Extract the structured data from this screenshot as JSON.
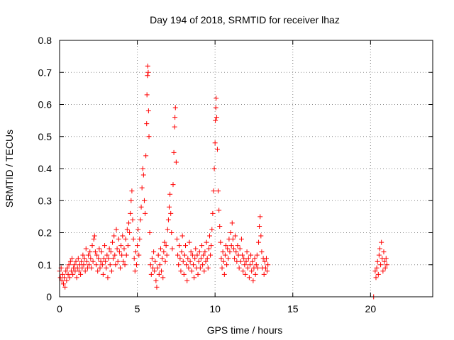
{
  "chart_data": {
    "type": "scatter",
    "title": "Day 194 of 2018, SRMTID for receiver lhaz",
    "xlabel": "GPS time / hours",
    "ylabel": "SRMTID / TECUs",
    "xlim": [
      0,
      24
    ],
    "ylim": [
      0,
      0.8
    ],
    "x_ticks": [
      0,
      5,
      10,
      15,
      20
    ],
    "y_ticks": [
      0,
      0.1,
      0.2,
      0.3,
      0.4,
      0.5,
      0.6,
      0.7,
      0.8
    ],
    "x_tick_labels": [
      "0",
      "5",
      "10",
      "15",
      "20"
    ],
    "y_tick_labels": [
      "0",
      "0.1",
      "0.2",
      "0.3",
      "0.4",
      "0.5",
      "0.6",
      "0.7",
      "0.8"
    ],
    "grid": true,
    "marker": "+",
    "colors": {
      "series": "#ff0000",
      "grid": "#888888",
      "axis": "#000000"
    },
    "series": [
      {
        "name": "SRMTID",
        "points": [
          [
            0.0,
            0.08
          ],
          [
            0.05,
            0.06
          ],
          [
            0.1,
            0.09
          ],
          [
            0.15,
            0.05
          ],
          [
            0.2,
            0.07
          ],
          [
            0.25,
            0.04
          ],
          [
            0.3,
            0.06
          ],
          [
            0.35,
            0.03
          ],
          [
            0.4,
            0.08
          ],
          [
            0.45,
            0.05
          ],
          [
            0.5,
            0.09
          ],
          [
            0.55,
            0.07
          ],
          [
            0.6,
            0.1
          ],
          [
            0.65,
            0.06
          ],
          [
            0.7,
            0.11
          ],
          [
            0.75,
            0.08
          ],
          [
            0.8,
            0.12
          ],
          [
            0.85,
            0.07
          ],
          [
            0.9,
            0.09
          ],
          [
            0.95,
            0.1
          ],
          [
            1.0,
            0.08
          ],
          [
            1.05,
            0.11
          ],
          [
            1.1,
            0.06
          ],
          [
            1.15,
            0.09
          ],
          [
            1.2,
            0.12
          ],
          [
            1.25,
            0.08
          ],
          [
            1.3,
            0.1
          ],
          [
            1.35,
            0.07
          ],
          [
            1.4,
            0.11
          ],
          [
            1.45,
            0.09
          ],
          [
            1.5,
            0.13
          ],
          [
            1.55,
            0.1
          ],
          [
            1.6,
            0.12
          ],
          [
            1.65,
            0.08
          ],
          [
            1.7,
            0.15
          ],
          [
            1.75,
            0.11
          ],
          [
            1.8,
            0.09
          ],
          [
            1.85,
            0.13
          ],
          [
            1.9,
            0.1
          ],
          [
            1.95,
            0.14
          ],
          [
            2.0,
            0.12
          ],
          [
            2.05,
            0.09
          ],
          [
            2.1,
            0.16
          ],
          [
            2.15,
            0.11
          ],
          [
            2.2,
            0.18
          ],
          [
            2.25,
            0.19
          ],
          [
            2.3,
            0.14
          ],
          [
            2.35,
            0.1
          ],
          [
            2.4,
            0.13
          ],
          [
            2.45,
            0.08
          ],
          [
            2.5,
            0.12
          ],
          [
            2.55,
            0.15
          ],
          [
            2.6,
            0.09
          ],
          [
            2.65,
            0.11
          ],
          [
            2.7,
            0.14
          ],
          [
            2.75,
            0.1
          ],
          [
            2.8,
            0.07
          ],
          [
            2.85,
            0.12
          ],
          [
            2.9,
            0.16
          ],
          [
            2.95,
            0.11
          ],
          [
            3.0,
            0.09
          ],
          [
            3.05,
            0.13
          ],
          [
            3.1,
            0.06
          ],
          [
            3.15,
            0.12
          ],
          [
            3.2,
            0.15
          ],
          [
            3.25,
            0.1
          ],
          [
            3.3,
            0.14
          ],
          [
            3.35,
            0.08
          ],
          [
            3.4,
            0.17
          ],
          [
            3.45,
            0.12
          ],
          [
            3.5,
            0.19
          ],
          [
            3.55,
            0.13
          ],
          [
            3.6,
            0.1
          ],
          [
            3.65,
            0.21
          ],
          [
            3.7,
            0.15
          ],
          [
            3.75,
            0.11
          ],
          [
            3.8,
            0.18
          ],
          [
            3.85,
            0.14
          ],
          [
            3.9,
            0.09
          ],
          [
            3.95,
            0.16
          ],
          [
            4.0,
            0.13
          ],
          [
            4.05,
            0.19
          ],
          [
            4.1,
            0.11
          ],
          [
            4.15,
            0.15
          ],
          [
            4.2,
            0.1
          ],
          [
            4.25,
            0.18
          ],
          [
            4.3,
            0.13
          ],
          [
            4.35,
            0.21
          ],
          [
            4.4,
            0.16
          ],
          [
            4.45,
            0.23
          ],
          [
            4.5,
            0.2
          ],
          [
            4.55,
            0.26
          ],
          [
            4.6,
            0.3
          ],
          [
            4.65,
            0.33
          ],
          [
            4.7,
            0.24
          ],
          [
            4.75,
            0.18
          ],
          [
            4.8,
            0.12
          ],
          [
            4.85,
            0.08
          ],
          [
            4.9,
            0.14
          ],
          [
            4.95,
            0.1
          ],
          [
            5.0,
            0.16
          ],
          [
            5.05,
            0.21
          ],
          [
            5.1,
            0.13
          ],
          [
            5.15,
            0.18
          ],
          [
            5.2,
            0.24
          ],
          [
            5.25,
            0.28
          ],
          [
            5.3,
            0.34
          ],
          [
            5.35,
            0.4
          ],
          [
            5.4,
            0.38
          ],
          [
            5.45,
            0.3
          ],
          [
            5.5,
            0.26
          ],
          [
            5.55,
            0.44
          ],
          [
            5.6,
            0.54
          ],
          [
            5.62,
            0.63
          ],
          [
            5.65,
            0.69
          ],
          [
            5.67,
            0.72
          ],
          [
            5.7,
            0.7
          ],
          [
            5.72,
            0.58
          ],
          [
            5.75,
            0.5
          ],
          [
            5.8,
            0.2
          ],
          [
            5.85,
            0.1
          ],
          [
            5.9,
            0.07
          ],
          [
            5.95,
            0.12
          ],
          [
            6.0,
            0.09
          ],
          [
            6.05,
            0.14
          ],
          [
            6.1,
            0.08
          ],
          [
            6.15,
            0.11
          ],
          [
            6.2,
            0.05
          ],
          [
            6.25,
            0.03
          ],
          [
            6.3,
            0.09
          ],
          [
            6.35,
            0.13
          ],
          [
            6.4,
            0.07
          ],
          [
            6.45,
            0.1
          ],
          [
            6.5,
            0.15
          ],
          [
            6.55,
            0.08
          ],
          [
            6.6,
            0.12
          ],
          [
            6.65,
            0.06
          ],
          [
            6.7,
            0.14
          ],
          [
            6.75,
            0.17
          ],
          [
            6.8,
            0.11
          ],
          [
            6.85,
            0.16
          ],
          [
            6.9,
            0.13
          ],
          [
            6.95,
            0.21
          ],
          [
            7.0,
            0.24
          ],
          [
            7.05,
            0.28
          ],
          [
            7.1,
            0.32
          ],
          [
            7.15,
            0.26
          ],
          [
            7.2,
            0.2
          ],
          [
            7.25,
            0.15
          ],
          [
            7.3,
            0.35
          ],
          [
            7.35,
            0.45
          ],
          [
            7.4,
            0.53
          ],
          [
            7.42,
            0.56
          ],
          [
            7.45,
            0.59
          ],
          [
            7.5,
            0.42
          ],
          [
            7.55,
            0.18
          ],
          [
            7.6,
            0.13
          ],
          [
            7.65,
            0.1
          ],
          [
            7.7,
            0.16
          ],
          [
            7.75,
            0.12
          ],
          [
            7.8,
            0.08
          ],
          [
            7.85,
            0.14
          ],
          [
            7.9,
            0.19
          ],
          [
            7.95,
            0.11
          ],
          [
            8.0,
            0.07
          ],
          [
            8.05,
            0.13
          ],
          [
            8.1,
            0.16
          ],
          [
            8.15,
            0.1
          ],
          [
            8.2,
            0.05
          ],
          [
            8.25,
            0.12
          ],
          [
            8.3,
            0.09
          ],
          [
            8.35,
            0.17
          ],
          [
            8.4,
            0.11
          ],
          [
            8.45,
            0.14
          ],
          [
            8.5,
            0.08
          ],
          [
            8.55,
            0.13
          ],
          [
            8.6,
            0.1
          ],
          [
            8.65,
            0.06
          ],
          [
            8.7,
            0.12
          ],
          [
            8.75,
            0.15
          ],
          [
            8.8,
            0.09
          ],
          [
            8.85,
            0.13
          ],
          [
            8.9,
            0.07
          ],
          [
            8.95,
            0.11
          ],
          [
            9.0,
            0.14
          ],
          [
            9.05,
            0.09
          ],
          [
            9.1,
            0.12
          ],
          [
            9.15,
            0.16
          ],
          [
            9.2,
            0.1
          ],
          [
            9.25,
            0.13
          ],
          [
            9.3,
            0.08
          ],
          [
            9.35,
            0.14
          ],
          [
            9.4,
            0.11
          ],
          [
            9.45,
            0.17
          ],
          [
            9.5,
            0.12
          ],
          [
            9.55,
            0.09
          ],
          [
            9.6,
            0.15
          ],
          [
            9.65,
            0.19
          ],
          [
            9.7,
            0.13
          ],
          [
            9.75,
            0.16
          ],
          [
            9.8,
            0.21
          ],
          [
            9.85,
            0.26
          ],
          [
            9.9,
            0.33
          ],
          [
            9.95,
            0.4
          ],
          [
            10.0,
            0.48
          ],
          [
            10.02,
            0.55
          ],
          [
            10.05,
            0.59
          ],
          [
            10.07,
            0.62
          ],
          [
            10.1,
            0.56
          ],
          [
            10.15,
            0.46
          ],
          [
            10.2,
            0.33
          ],
          [
            10.25,
            0.27
          ],
          [
            10.3,
            0.22
          ],
          [
            10.35,
            0.17
          ],
          [
            10.4,
            0.12
          ],
          [
            10.45,
            0.09
          ],
          [
            10.5,
            0.14
          ],
          [
            10.55,
            0.11
          ],
          [
            10.6,
            0.07
          ],
          [
            10.65,
            0.13
          ],
          [
            10.7,
            0.16
          ],
          [
            10.75,
            0.1
          ],
          [
            10.8,
            0.15
          ],
          [
            10.85,
            0.12
          ],
          [
            10.9,
            0.18
          ],
          [
            10.95,
            0.14
          ],
          [
            11.0,
            0.2
          ],
          [
            11.05,
            0.16
          ],
          [
            11.1,
            0.23
          ],
          [
            11.15,
            0.18
          ],
          [
            11.2,
            0.15
          ],
          [
            11.25,
            0.12
          ],
          [
            11.3,
            0.19
          ],
          [
            11.35,
            0.14
          ],
          [
            11.4,
            0.11
          ],
          [
            11.45,
            0.16
          ],
          [
            11.5,
            0.13
          ],
          [
            11.55,
            0.09
          ],
          [
            11.6,
            0.15
          ],
          [
            11.65,
            0.11
          ],
          [
            11.7,
            0.18
          ],
          [
            11.75,
            0.13
          ],
          [
            11.8,
            0.08
          ],
          [
            11.85,
            0.12
          ],
          [
            11.9,
            0.1
          ],
          [
            11.95,
            0.07
          ],
          [
            12.0,
            0.11
          ],
          [
            12.05,
            0.14
          ],
          [
            12.1,
            0.09
          ],
          [
            12.15,
            0.12
          ],
          [
            12.2,
            0.06
          ],
          [
            12.25,
            0.1
          ],
          [
            12.3,
            0.13
          ],
          [
            12.35,
            0.08
          ],
          [
            12.4,
            0.11
          ],
          [
            12.45,
            0.05
          ],
          [
            12.5,
            0.09
          ],
          [
            12.55,
            0.12
          ],
          [
            12.6,
            0.07
          ],
          [
            12.65,
            0.1
          ],
          [
            12.7,
            0.13
          ],
          [
            12.75,
            0.09
          ],
          [
            12.8,
            0.17
          ],
          [
            12.85,
            0.22
          ],
          [
            12.9,
            0.25
          ],
          [
            12.95,
            0.19
          ],
          [
            13.0,
            0.14
          ],
          [
            13.05,
            0.09
          ],
          [
            13.1,
            0.12
          ],
          [
            13.15,
            0.07
          ],
          [
            13.2,
            0.11
          ],
          [
            13.25,
            0.09
          ],
          [
            13.3,
            0.12
          ],
          [
            13.35,
            0.08
          ],
          [
            13.4,
            0.1
          ],
          [
            20.2,
            0.0
          ],
          [
            20.3,
            0.08
          ],
          [
            20.35,
            0.06
          ],
          [
            20.4,
            0.09
          ],
          [
            20.45,
            0.11
          ],
          [
            20.5,
            0.07
          ],
          [
            20.55,
            0.13
          ],
          [
            20.6,
            0.15
          ],
          [
            20.65,
            0.1
          ],
          [
            20.7,
            0.17
          ],
          [
            20.75,
            0.12
          ],
          [
            20.8,
            0.08
          ],
          [
            20.85,
            0.14
          ],
          [
            20.9,
            0.11
          ],
          [
            20.95,
            0.09
          ],
          [
            21.0,
            0.12
          ],
          [
            21.05,
            0.1
          ]
        ]
      }
    ]
  }
}
